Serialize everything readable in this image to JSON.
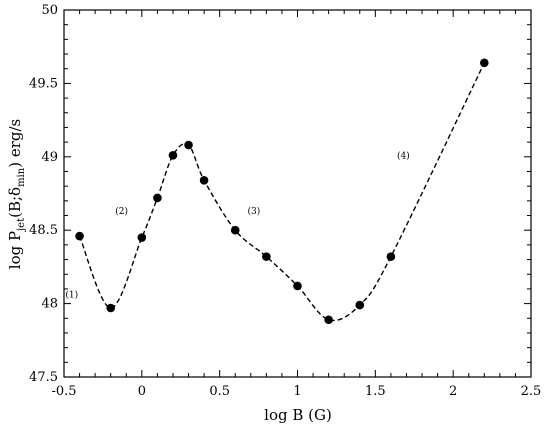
{
  "chart_data": {
    "type": "scatter",
    "xlabel": "log B (G)",
    "ylabel": {
      "prefix": "log P",
      "prefix_sub": "jet",
      "middle": "(B;δ",
      "middle_sub": "min",
      "suffix": ") erg/s"
    },
    "xlim": [
      -0.5,
      2.5
    ],
    "ylim": [
      47.5,
      50
    ],
    "xticks": [
      -0.5,
      0,
      0.5,
      1,
      1.5,
      2,
      2.5
    ],
    "xtick_labels": [
      "-0.5",
      "0",
      "0.5",
      "1",
      "1.5",
      "2",
      "2.5"
    ],
    "yticks": [
      47.5,
      48,
      48.5,
      49,
      49.5,
      50
    ],
    "ytick_labels": [
      "47.5",
      "48",
      "48.5",
      "49",
      "49.5",
      "50"
    ],
    "grid": false,
    "series": [
      {
        "marker": "filled-circle",
        "line": "dashed-smooth",
        "color": "#000000",
        "points": [
          {
            "x": -0.4,
            "y": 48.46
          },
          {
            "x": -0.2,
            "y": 47.97
          },
          {
            "x": 0.0,
            "y": 48.45
          },
          {
            "x": 0.1,
            "y": 48.72
          },
          {
            "x": 0.2,
            "y": 49.01
          },
          {
            "x": 0.3,
            "y": 49.08
          },
          {
            "x": 0.4,
            "y": 48.84
          },
          {
            "x": 0.6,
            "y": 48.5
          },
          {
            "x": 0.8,
            "y": 48.32
          },
          {
            "x": 1.0,
            "y": 48.12
          },
          {
            "x": 1.2,
            "y": 47.89
          },
          {
            "x": 1.4,
            "y": 47.99
          },
          {
            "x": 1.6,
            "y": 48.32
          },
          {
            "x": 2.2,
            "y": 49.64
          }
        ]
      }
    ],
    "annotations": [
      {
        "text": "(1)",
        "x": -0.45,
        "y": 48.04
      },
      {
        "text": "(2)",
        "x": -0.13,
        "y": 48.61
      },
      {
        "text": "(3)",
        "x": 0.72,
        "y": 48.61
      },
      {
        "text": "(4)",
        "x": 1.68,
        "y": 48.99
      }
    ]
  }
}
